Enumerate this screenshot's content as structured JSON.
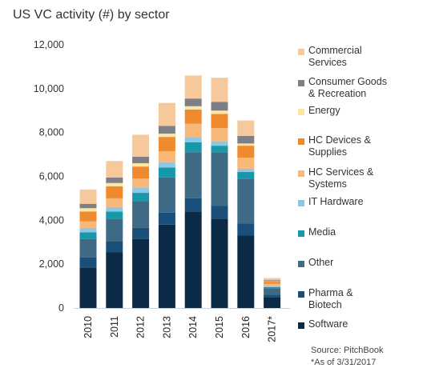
{
  "chart_data": {
    "type": "bar",
    "stacked": true,
    "title": "US VC activity (#) by sector",
    "categories": [
      "2010",
      "2011",
      "2012",
      "2013",
      "2014",
      "2015",
      "2016",
      "2017*"
    ],
    "ylim": [
      0,
      12000
    ],
    "yticks": [
      "0",
      "2,000",
      "4,000",
      "6,000",
      "8,000",
      "10,000",
      "12,000"
    ],
    "ytick_values": [
      0,
      2000,
      4000,
      6000,
      8000,
      10000,
      12000
    ],
    "grid": false,
    "legend_position": "right",
    "series": [
      {
        "name": "Software",
        "color": "#0b2a45",
        "values": [
          1850,
          2550,
          3150,
          3800,
          4400,
          4050,
          3300,
          500
        ]
      },
      {
        "name": "Pharma & Biotech",
        "color": "#1a4f7a",
        "values": [
          450,
          500,
          500,
          550,
          600,
          600,
          550,
          100
        ]
      },
      {
        "name": "Other",
        "color": "#3e6a86",
        "values": [
          850,
          1000,
          1200,
          1600,
          2100,
          2450,
          2050,
          300
        ]
      },
      {
        "name": "Media",
        "color": "#1698aa",
        "values": [
          300,
          350,
          400,
          450,
          450,
          300,
          300,
          50
        ]
      },
      {
        "name": "IT Hardware",
        "color": "#8ec6e6",
        "values": [
          200,
          200,
          250,
          250,
          250,
          200,
          150,
          50
        ]
      },
      {
        "name": "HC Services & Systems",
        "color": "#f7b87a",
        "values": [
          300,
          400,
          400,
          500,
          600,
          600,
          500,
          100
        ]
      },
      {
        "name": "HC Devices & Supplies",
        "color": "#f08a2e",
        "values": [
          450,
          550,
          550,
          650,
          650,
          650,
          550,
          100
        ]
      },
      {
        "name": "Energy",
        "color": "#fbe6a2",
        "values": [
          150,
          150,
          150,
          150,
          150,
          150,
          100,
          20
        ]
      },
      {
        "name": "Consumer Goods & Recreation",
        "color": "#7d7f85",
        "values": [
          200,
          250,
          300,
          350,
          350,
          400,
          350,
          50
        ]
      },
      {
        "name": "Commercial Services",
        "color": "#f6c99c",
        "values": [
          650,
          750,
          1000,
          1050,
          1050,
          1100,
          700,
          100
        ]
      }
    ]
  },
  "legend": [
    {
      "lines": [
        "Commercial",
        "Services"
      ],
      "color": "#f6c99c"
    },
    {
      "lines": [
        "Consumer Goods",
        "& Recreation"
      ],
      "color": "#7d7f85"
    },
    {
      "lines": [
        "Energy"
      ],
      "color": "#fbe6a2"
    },
    {
      "lines": [
        "HC Devices &",
        "Supplies"
      ],
      "color": "#f08a2e"
    },
    {
      "lines": [
        "HC Services &",
        "Systems"
      ],
      "color": "#f7b87a"
    },
    {
      "lines": [
        "IT Hardware"
      ],
      "color": "#8ec6e6"
    },
    {
      "lines": [
        "Media"
      ],
      "color": "#1698aa"
    },
    {
      "lines": [
        "Other"
      ],
      "color": "#3e6a86"
    },
    {
      "lines": [
        "Pharma &",
        "Biotech"
      ],
      "color": "#1a4f7a"
    },
    {
      "lines": [
        "Software"
      ],
      "color": "#0b2a45"
    }
  ],
  "notes": {
    "source": "Source: PitchBook",
    "asof": "*As of 3/31/2017"
  }
}
